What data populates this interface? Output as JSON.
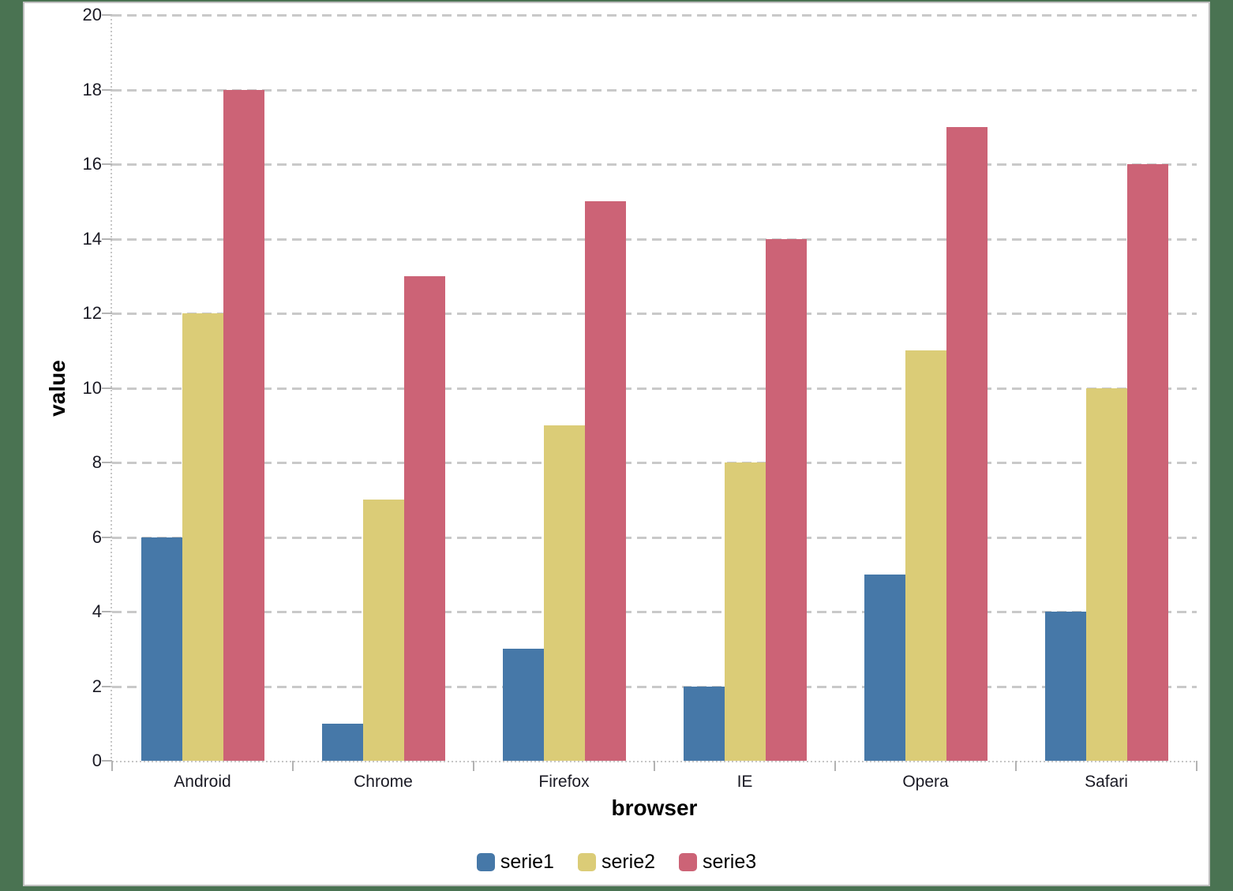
{
  "frame": {
    "background_color": "#4a7352",
    "panel_border_color": "#c0c0c0",
    "panel_background_color": "#ffffff",
    "gridline_color": "#c9c9c9"
  },
  "chart_data": {
    "type": "bar",
    "title": "",
    "categories": [
      "Android",
      "Chrome",
      "Firefox",
      "IE",
      "Opera",
      "Safari"
    ],
    "series": [
      {
        "name": "serie1",
        "color": "#4678a8",
        "values": [
          6,
          1,
          3,
          2,
          5,
          4
        ]
      },
      {
        "name": "serie2",
        "color": "#dbcc77",
        "values": [
          12,
          7,
          9,
          8,
          11,
          10
        ]
      },
      {
        "name": "serie3",
        "color": "#cc6376",
        "values": [
          18,
          13,
          15,
          14,
          17,
          16
        ]
      }
    ],
    "xlabel": "browser",
    "ylabel": "value",
    "ylim": [
      0,
      20
    ],
    "yticks": [
      "0",
      "2",
      "4",
      "6",
      "8",
      "10",
      "12",
      "14",
      "16",
      "18",
      "20"
    ],
    "grid": "dashed-horizontal",
    "legend_position": "bottom"
  }
}
